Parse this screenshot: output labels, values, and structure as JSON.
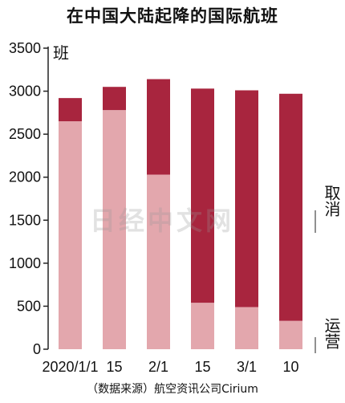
{
  "title": "在中国大陆起降的国际航班",
  "source": "（数据来源）航空资讯公司Cirium",
  "watermark": "日经中文网",
  "colors": {
    "operated": "#e3a7ad",
    "cancelled": "#a8253e",
    "axis": "#222222"
  },
  "chart_data": {
    "type": "bar",
    "stacked": true,
    "ylabel": "班",
    "ylim": [
      0,
      3500
    ],
    "yticks": [
      0,
      500,
      1000,
      1500,
      2000,
      2500,
      3000,
      3500
    ],
    "categories": [
      "2020/1/1",
      "15",
      "2/1",
      "15",
      "3/1",
      "10"
    ],
    "series": [
      {
        "name": "运营",
        "values": [
          2650,
          2780,
          2030,
          540,
          490,
          330
        ]
      },
      {
        "name": "取消",
        "values": [
          270,
          270,
          1110,
          2490,
          2520,
          2640
        ]
      }
    ],
    "annotations": [
      "取消",
      "运营"
    ],
    "legend": "right side labels"
  }
}
